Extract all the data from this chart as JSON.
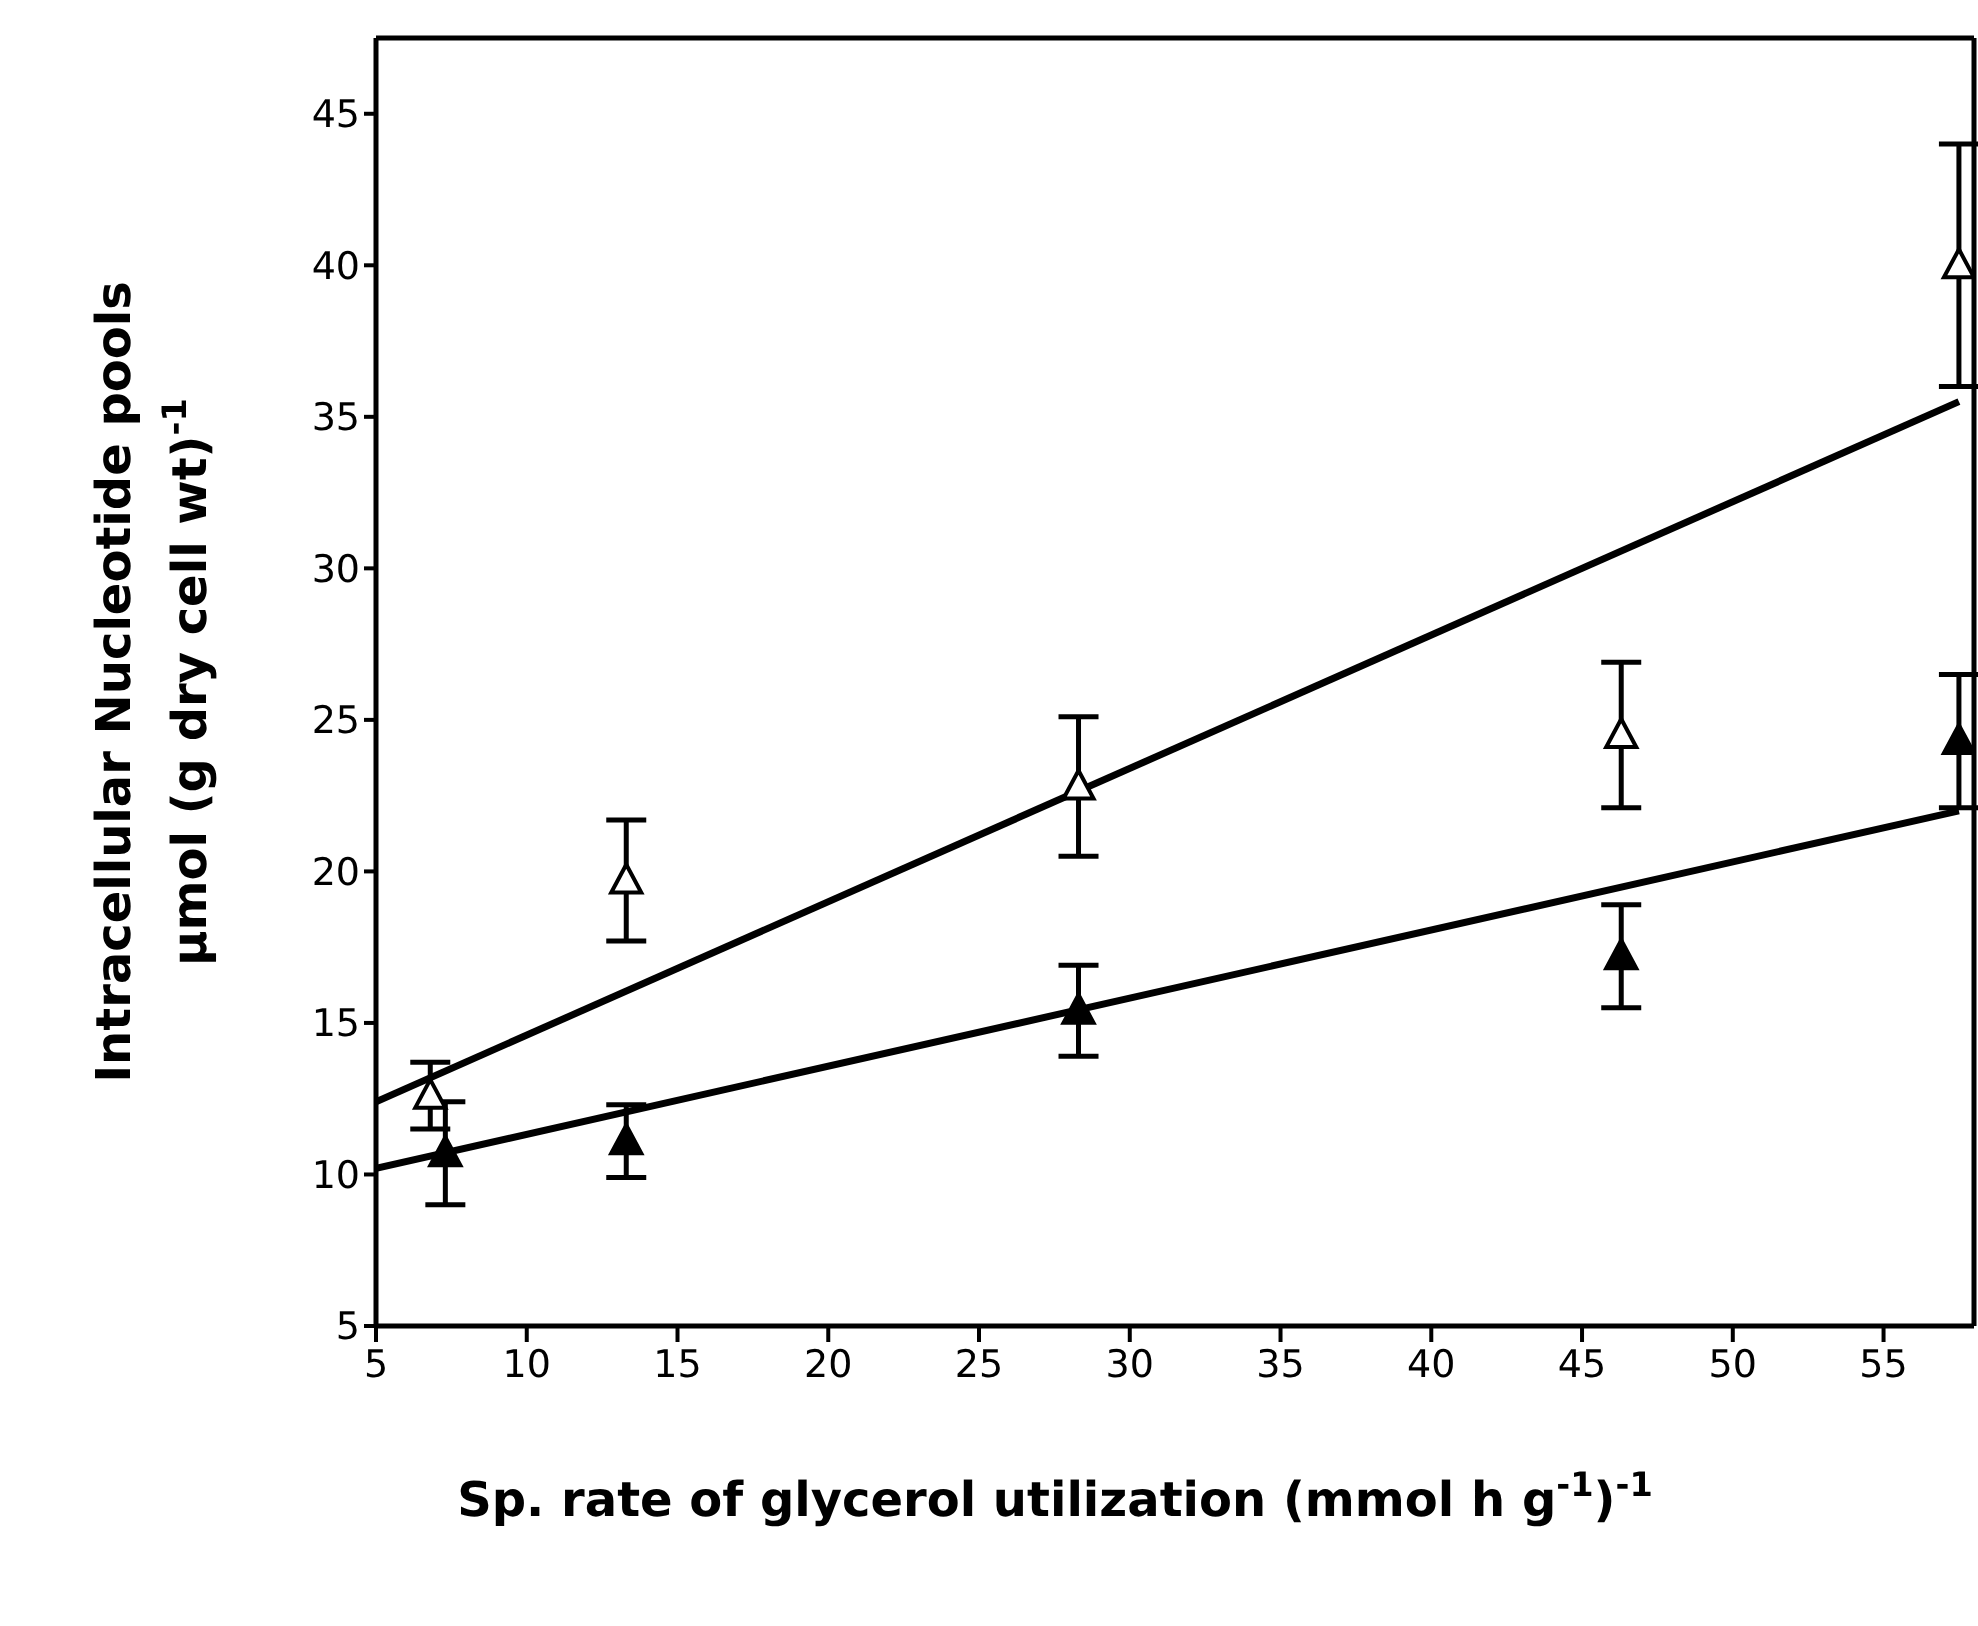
{
  "chart_data": {
    "type": "scatter",
    "xlabel": "Sp. rate of glycerol utilization (mmol h  g$^{-1}$)$^{-1}$",
    "ylabel": "Intracellular Nucleotide pools\nμmol (g dry cell wt)$^{-1}$",
    "series": [
      {
        "marker": "triangle",
        "color": "#ffffff",
        "x": [
          6.8,
          13.3,
          28.3,
          46.3,
          57.5
        ],
        "values": [
          12.6,
          19.7,
          22.8,
          24.5,
          40.0
        ],
        "errors": [
          1.1,
          2.0,
          2.3,
          2.4,
          4.0
        ]
      },
      {
        "marker": "triangle",
        "color": "#000000",
        "x": [
          7.3,
          13.3,
          28.3,
          46.3,
          57.5
        ],
        "values": [
          10.7,
          11.1,
          15.4,
          17.2,
          24.3
        ],
        "errors": [
          1.7,
          1.2,
          1.5,
          1.7,
          2.2
        ]
      },
      {
        "type": "line",
        "color": "#000000",
        "x": [
          5,
          57.5
        ],
        "values": [
          12.4,
          35.5
        ]
      },
      {
        "type": "line",
        "color": "#000000",
        "x": [
          5,
          57.5
        ],
        "values": [
          10.2,
          22.0
        ]
      }
    ],
    "xlim": [
      5,
      58
    ],
    "xticks": [
      5,
      10,
      15,
      20,
      25,
      30,
      35,
      40,
      45,
      50,
      55
    ],
    "ylim": [
      5,
      47.5
    ],
    "yticks": [
      5,
      10,
      15,
      20,
      25,
      30,
      35,
      40,
      45
    ]
  }
}
